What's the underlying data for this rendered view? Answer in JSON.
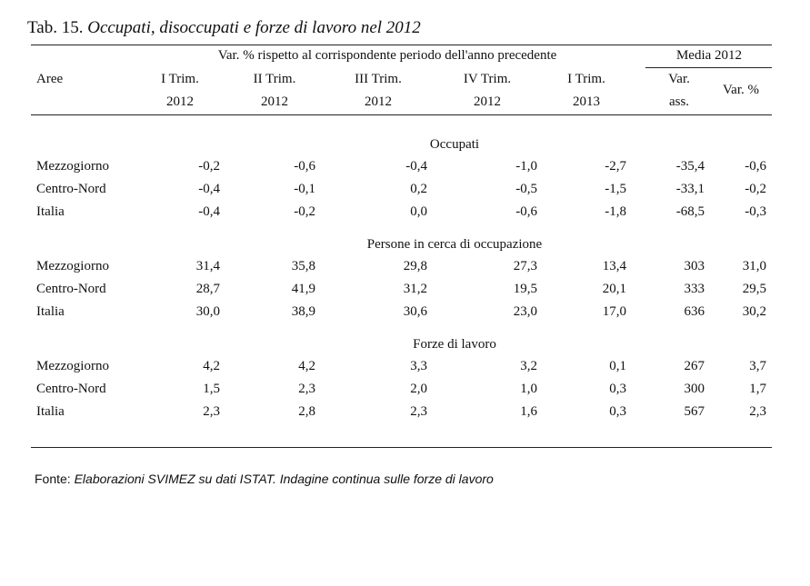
{
  "title": {
    "prefix": "Tab. 15.",
    "text": "Occupati, disoccupati e forze di lavoro nel 2012"
  },
  "header": {
    "group_label": "Var. % rispetto al corrispondente periodo dell'anno precedente",
    "media_label": "Media 2012",
    "row_label": "Aree",
    "columns": [
      {
        "line1": "I Trim.",
        "line2": "2012"
      },
      {
        "line1": "II Trim.",
        "line2": "2012"
      },
      {
        "line1": "III Trim.",
        "line2": "2012"
      },
      {
        "line1": "IV Trim.",
        "line2": "2012"
      },
      {
        "line1": "I Trim.",
        "line2": "2013"
      },
      {
        "line1": "Var.",
        "line2": "ass."
      },
      {
        "line1": "Var. %",
        "line2": ""
      }
    ]
  },
  "sections": [
    {
      "title": "Occupati",
      "rows": [
        {
          "area": "Mezzogiorno",
          "values": [
            "-0,2",
            "-0,6",
            "-0,4",
            "-1,0",
            "-2,7",
            "-35,4",
            "-0,6"
          ]
        },
        {
          "area": "Centro-Nord",
          "values": [
            "-0,4",
            "-0,1",
            "0,2",
            "-0,5",
            "-1,5",
            "-33,1",
            "-0,2"
          ]
        },
        {
          "area": "Italia",
          "values": [
            "-0,4",
            "-0,2",
            "0,0",
            "-0,6",
            "-1,8",
            "-68,5",
            "-0,3"
          ]
        }
      ]
    },
    {
      "title": "Persone in cerca di occupazione",
      "rows": [
        {
          "area": "Mezzogiorno",
          "values": [
            "31,4",
            "35,8",
            "29,8",
            "27,3",
            "13,4",
            "303",
            "31,0"
          ]
        },
        {
          "area": "Centro-Nord",
          "values": [
            "28,7",
            "41,9",
            "31,2",
            "19,5",
            "20,1",
            "333",
            "29,5"
          ]
        },
        {
          "area": "Italia",
          "values": [
            "30,0",
            "38,9",
            "30,6",
            "23,0",
            "17,0",
            "636",
            "30,2"
          ]
        }
      ]
    },
    {
      "title": "Forze di lavoro",
      "rows": [
        {
          "area": "Mezzogiorno",
          "values": [
            "4,2",
            "4,2",
            "3,3",
            "3,2",
            "0,1",
            "267",
            "3,7"
          ]
        },
        {
          "area": "Centro-Nord",
          "values": [
            "1,5",
            "2,3",
            "2,0",
            "1,0",
            "0,3",
            "300",
            "1,7"
          ]
        },
        {
          "area": "Italia",
          "values": [
            "2,3",
            "2,8",
            "2,3",
            "1,6",
            "0,3",
            "567",
            "2,3"
          ]
        }
      ]
    }
  ],
  "source": {
    "label": "Fonte:",
    "text": "Elaborazioni SVIMEZ su dati ISTAT. Indagine continua sulle forze di lavoro"
  }
}
